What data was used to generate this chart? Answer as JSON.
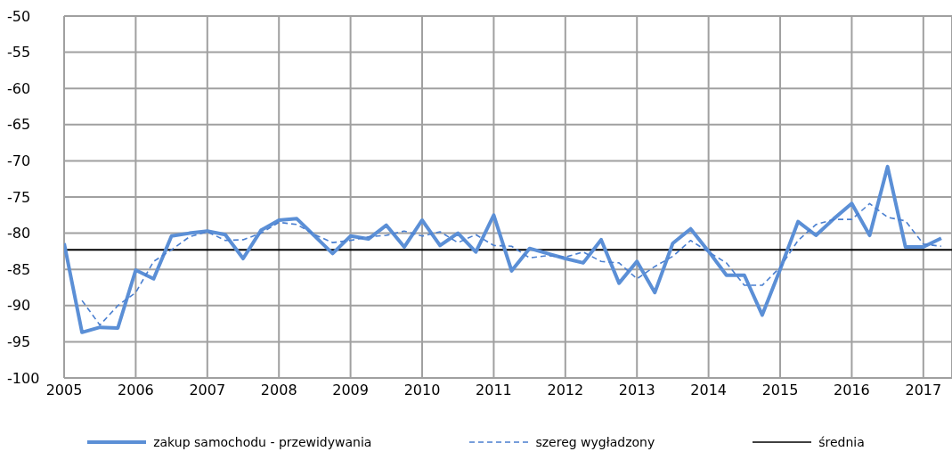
{
  "chart_data": {
    "type": "line",
    "xlim": [
      2005,
      2017.4
    ],
    "xticks": [
      2005,
      2006,
      2007,
      2008,
      2009,
      2010,
      2011,
      2012,
      2013,
      2014,
      2015,
      2016,
      2017
    ],
    "ylim": [
      -100,
      -50
    ],
    "yticks": [
      -100,
      -95,
      -90,
      -85,
      -80,
      -75,
      -70,
      -65,
      -60,
      -55,
      -50
    ],
    "grid": true,
    "legend": "bottom",
    "marker": "none",
    "x": [
      2005,
      2005.25,
      2005.5,
      2005.75,
      2006,
      2006.25,
      2006.5,
      2006.75,
      2007,
      2007.25,
      2007.5,
      2007.75,
      2008,
      2008.25,
      2008.5,
      2008.75,
      2009,
      2009.25,
      2009.5,
      2009.75,
      2010,
      2010.25,
      2010.5,
      2010.75,
      2011,
      2011.25,
      2011.5,
      2011.75,
      2012,
      2012.25,
      2012.5,
      2012.75,
      2013,
      2013.25,
      2013.5,
      2013.75,
      2014,
      2014.25,
      2014.5,
      2014.75,
      2015,
      2015.25,
      2015.5,
      2015.75,
      2016,
      2016.25,
      2016.5,
      2016.75,
      2017,
      2017.25
    ],
    "series": [
      {
        "name": "zakup samochodu - przewidywania",
        "color": "#5b8fd6",
        "line_style": "solid",
        "values": [
          -81.4,
          -93.7,
          -93.0,
          -93.1,
          -85.1,
          -86.3,
          -80.4,
          -80.0,
          -79.7,
          -80.2,
          -83.5,
          -79.6,
          -78.2,
          -78.0,
          -80.4,
          -82.8,
          -80.4,
          -80.8,
          -78.9,
          -81.9,
          -78.2,
          -81.7,
          -80.0,
          -82.6,
          -77.5,
          -85.2,
          -82.1,
          -82.8,
          -83.5,
          -84.1,
          -80.9,
          -86.9,
          -83.9,
          -88.2,
          -81.4,
          -79.4,
          -82.5,
          -85.8,
          -85.8,
          -91.3,
          -85.0,
          -78.4,
          -80.3,
          -78.0,
          -75.9,
          -80.3,
          -70.8,
          -81.9,
          -81.9,
          -80.7
        ]
      },
      {
        "name": "szereg wygładzony",
        "color": "#4a7fd0",
        "line_style": "dashed",
        "values": [
          null,
          -89.3,
          -92.7,
          -90.0,
          -88.2,
          -83.9,
          -82.3,
          -80.5,
          -79.8,
          -81.0,
          -80.9,
          -80.0,
          -78.5,
          -78.8,
          -80.2,
          -81.3,
          -81.0,
          -80.5,
          -80.3,
          -79.7,
          -80.4,
          -79.8,
          -81.3,
          -80.2,
          -81.7,
          -81.8,
          -83.4,
          -83.1,
          -83.3,
          -82.6,
          -83.9,
          -84.1,
          -86.3,
          -84.6,
          -83.2,
          -81.0,
          -82.6,
          -84.1,
          -87.2,
          -87.2,
          -84.7,
          -81.0,
          -78.8,
          -78.1,
          -78.1,
          -75.9,
          -77.8,
          -78.3,
          -81.5,
          -81.8
        ]
      }
    ],
    "ref_lines": [
      {
        "axis": "y",
        "value": -82.3,
        "label": "średnia",
        "color": "#000000",
        "line_style": "solid"
      }
    ]
  }
}
